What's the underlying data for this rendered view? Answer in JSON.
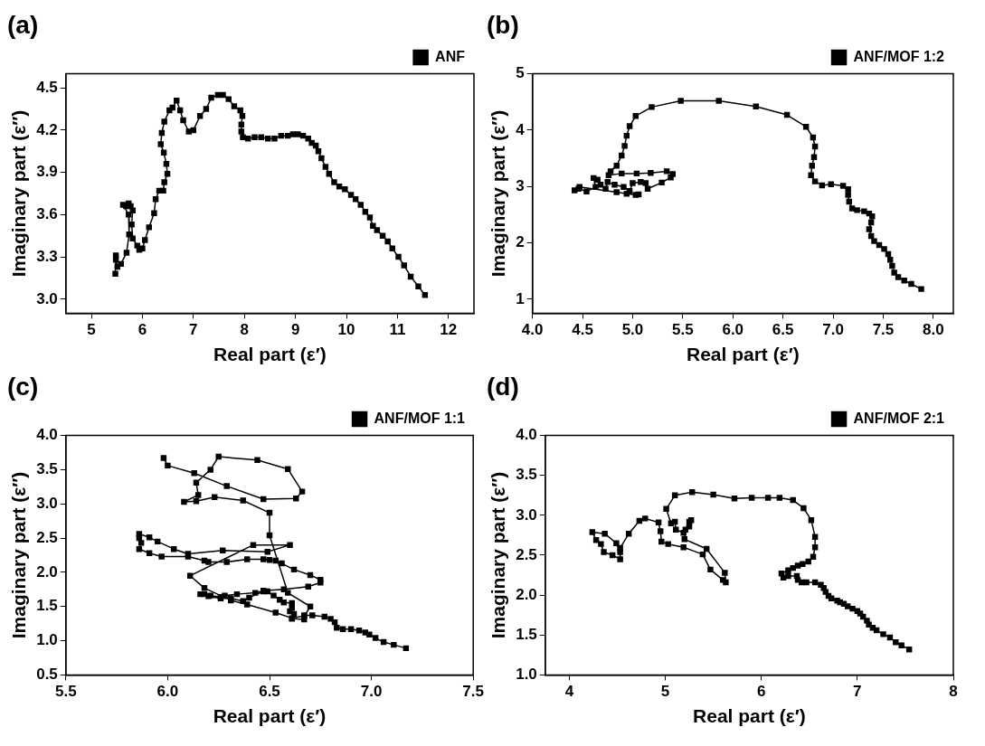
{
  "chart_data": [
    {
      "type": "line",
      "title": "(a)",
      "xlabel": "Real part (ε′)",
      "ylabel": "Imaginary part (ε″)",
      "xlim": [
        4.5,
        12.5
      ],
      "xticks": [
        5,
        6,
        7,
        8,
        9,
        10,
        11,
        12
      ],
      "ylim": [
        2.9,
        4.6
      ],
      "yticks": [
        {
          "value": 3,
          "label": "3.0"
        },
        3.3,
        3.6,
        3.9,
        4.2,
        4.5
      ],
      "marker": "square",
      "legend": "top right",
      "series": [
        {
          "name": "ANF",
          "color": "#000000",
          "x": [
            11.54,
            11.41,
            11.26,
            11.13,
            11.02,
            10.9,
            10.81,
            10.71,
            10.6,
            10.52,
            10.46,
            10.37,
            10.28,
            10.18,
            10.09,
            9.97,
            9.86,
            9.76,
            9.66,
            9.59,
            9.51,
            9.45,
            9.4,
            9.32,
            9.25,
            9.15,
            9.05,
            8.95,
            8.85,
            8.72,
            8.59,
            8.46,
            8.33,
            8.2,
            8.07,
            7.97,
            7.94,
            7.94,
            7.96,
            7.92,
            7.8,
            7.69,
            7.58,
            7.48,
            7.35,
            7.25,
            7.13,
            7.0,
            6.91,
            6.8,
            6.74,
            6.67,
            6.59,
            6.53,
            6.43,
            6.38,
            6.36,
            6.42,
            6.47,
            6.49,
            6.43,
            6.41,
            6.33,
            6.26,
            6.23,
            6.13,
            6.05,
            6.0,
            5.94,
            5.9,
            5.81,
            5.79,
            5.81,
            5.77,
            5.73,
            5.68,
            5.62,
            5.73,
            5.74,
            5.69,
            5.58,
            5.51,
            5.48,
            5.48,
            5.47
          ],
          "values": [
            3.03,
            3.09,
            3.16,
            3.24,
            3.3,
            3.36,
            3.41,
            3.45,
            3.49,
            3.52,
            3.58,
            3.62,
            3.67,
            3.71,
            3.74,
            3.78,
            3.8,
            3.83,
            3.89,
            3.94,
            4.0,
            4.05,
            4.09,
            4.11,
            4.14,
            4.16,
            4.17,
            4.17,
            4.16,
            4.16,
            4.14,
            4.14,
            4.15,
            4.15,
            4.14,
            4.15,
            4.19,
            4.24,
            4.3,
            4.34,
            4.37,
            4.42,
            4.45,
            4.45,
            4.43,
            4.35,
            4.3,
            4.2,
            4.19,
            4.27,
            4.34,
            4.41,
            4.36,
            4.34,
            4.26,
            4.18,
            4.1,
            4.04,
            3.96,
            3.89,
            3.83,
            3.77,
            3.77,
            3.71,
            3.61,
            3.51,
            3.42,
            3.36,
            3.35,
            3.38,
            3.43,
            3.53,
            3.63,
            3.66,
            3.68,
            3.66,
            3.67,
            3.6,
            3.46,
            3.33,
            3.25,
            3.23,
            3.28,
            3.31,
            3.18
          ]
        }
      ]
    },
    {
      "type": "line",
      "title": "(b)",
      "xlabel": "Real part (ε′)",
      "ylabel": "Imaginary part (ε″)",
      "xlim": [
        4.0,
        8.2
      ],
      "xticks": [
        {
          "value": 4,
          "label": "4.0"
        },
        4.5,
        {
          "value": 5,
          "label": "5.0"
        },
        5.5,
        {
          "value": 6,
          "label": "6.0"
        },
        6.5,
        {
          "value": 7,
          "label": "7.0"
        },
        7.5,
        {
          "value": 8,
          "label": "8.0"
        }
      ],
      "ylim": [
        0.75,
        5
      ],
      "yticks": [
        1,
        2,
        3,
        4,
        5
      ],
      "marker": "square",
      "legend": "top right",
      "series": [
        {
          "name": "ANF/MOF 1:2",
          "color": "#000000",
          "x": [
            7.88,
            7.78,
            7.71,
            7.65,
            7.61,
            7.59,
            7.57,
            7.55,
            7.51,
            7.46,
            7.41,
            7.38,
            7.36,
            7.38,
            7.39,
            7.36,
            7.31,
            7.24,
            7.19,
            7.16,
            7.15,
            7.15,
            7.1,
            6.98,
            6.89,
            6.82,
            6.78,
            6.79,
            6.81,
            6.82,
            6.8,
            6.73,
            6.54,
            6.23,
            5.86,
            5.48,
            5.19,
            5.03,
            4.97,
            4.94,
            4.92,
            4.89,
            4.84,
            4.78,
            4.76,
            4.89,
            5.04,
            5.18,
            5.34,
            5.4,
            5.38,
            5.29,
            5.15,
            5.13,
            5.08,
            5.0,
            4.97,
            4.91,
            4.82,
            4.75,
            4.73,
            4.68,
            4.65,
            4.61,
            4.63,
            4.54,
            4.46,
            4.42,
            4.47,
            4.84,
            4.94,
            5.03,
            5.06
          ],
          "values": [
            1.18,
            1.27,
            1.33,
            1.39,
            1.47,
            1.59,
            1.7,
            1.8,
            1.89,
            1.96,
            2.03,
            2.12,
            2.24,
            2.36,
            2.47,
            2.52,
            2.56,
            2.58,
            2.61,
            2.73,
            2.85,
            2.95,
            3.01,
            3.04,
            3.02,
            3.09,
            3.2,
            3.37,
            3.52,
            3.71,
            3.87,
            4.06,
            4.27,
            4.42,
            4.52,
            4.52,
            4.41,
            4.25,
            4.07,
            3.9,
            3.72,
            3.55,
            3.37,
            3.27,
            3.2,
            3.23,
            3.23,
            3.24,
            3.27,
            3.22,
            3.16,
            3.07,
            2.96,
            3.06,
            3.08,
            3.06,
            2.92,
            2.99,
            3.03,
            3.08,
            2.96,
            3.03,
            3.12,
            3.15,
            2.99,
            2.91,
            2.96,
            2.93,
            2.99,
            2.9,
            2.87,
            2.85,
            2.86
          ]
        }
      ]
    },
    {
      "type": "line",
      "title": "(c)",
      "xlabel": "Real part (ε′)",
      "ylabel": "Imaginary part (ε″)",
      "xlim": [
        5.5,
        7.5
      ],
      "xticks": [
        5.5,
        {
          "value": 6,
          "label": "6.0"
        },
        6.5,
        {
          "value": 7,
          "label": "7.0"
        },
        7.5
      ],
      "ylim": [
        0.5,
        4.0
      ],
      "yticks": [
        0.5,
        {
          "value": 1,
          "label": "1.0"
        },
        1.5,
        {
          "value": 2,
          "label": "2.0"
        },
        2.5,
        {
          "value": 3,
          "label": "3.0"
        },
        3.5,
        {
          "value": 4,
          "label": "4.0"
        }
      ],
      "marker": "square",
      "legend": "top right",
      "series": [
        {
          "name": "ANF/MOF 1:1",
          "color": "#000000",
          "x": [
            5.98,
            6.0,
            6.13,
            6.29,
            6.47,
            6.63,
            6.66,
            6.59,
            6.44,
            6.25,
            6.21,
            6.14,
            6.15,
            6.08,
            6.14,
            6.23,
            6.37,
            6.5,
            6.5,
            6.59,
            6.7,
            6.67,
            6.61,
            6.53,
            6.39,
            6.31,
            6.18,
            6.11,
            6.42,
            6.6,
            6.49,
            6.27,
            6.1,
            6.03,
            5.95,
            5.91,
            5.86,
            5.86,
            5.87,
            5.86,
            5.91,
            5.97,
            6.1,
            6.18,
            6.2,
            6.29,
            6.39,
            6.47,
            6.5,
            6.53,
            6.56,
            6.62,
            6.7,
            6.75,
            6.75,
            6.69,
            6.57,
            6.47,
            6.43,
            6.34,
            6.28,
            6.26,
            6.21,
            6.18,
            6.16,
            6.2,
            6.26,
            6.31,
            6.37,
            6.4,
            6.47,
            6.49,
            6.52,
            6.55,
            6.57,
            6.61,
            6.61,
            6.6,
            6.62,
            6.61,
            6.67,
            6.67,
            6.71,
            6.77,
            6.8,
            6.82,
            6.83,
            6.86,
            6.9,
            6.94,
            6.97,
            6.99,
            7.02,
            7.06,
            7.11,
            7.17
          ],
          "values": [
            3.67,
            3.56,
            3.45,
            3.26,
            3.07,
            3.08,
            3.18,
            3.51,
            3.64,
            3.69,
            3.5,
            3.31,
            3.13,
            3.03,
            3.04,
            3.1,
            3.05,
            2.87,
            2.54,
            1.7,
            1.5,
            1.36,
            1.33,
            1.41,
            1.53,
            1.59,
            1.77,
            1.95,
            2.4,
            2.4,
            2.3,
            2.32,
            2.27,
            2.34,
            2.45,
            2.51,
            2.56,
            2.5,
            2.43,
            2.34,
            2.28,
            2.23,
            2.23,
            2.17,
            2.15,
            2.15,
            2.19,
            2.19,
            2.18,
            2.17,
            2.13,
            2.04,
            1.96,
            1.89,
            1.85,
            1.79,
            1.75,
            1.73,
            1.7,
            1.68,
            1.66,
            1.64,
            1.66,
            1.68,
            1.68,
            1.65,
            1.62,
            1.62,
            1.58,
            1.63,
            1.72,
            1.72,
            1.66,
            1.6,
            1.56,
            1.55,
            1.48,
            1.43,
            1.39,
            1.32,
            1.31,
            1.37,
            1.37,
            1.35,
            1.32,
            1.27,
            1.19,
            1.17,
            1.17,
            1.15,
            1.12,
            1.09,
            1.04,
            0.98,
            0.94,
            0.89
          ]
        }
      ]
    },
    {
      "type": "line",
      "title": "(d)",
      "xlabel": "Real part (ε′)",
      "ylabel": "Imaginary part (ε″)",
      "xlim": [
        3.75,
        8
      ],
      "xticks": [
        4,
        5,
        6,
        7,
        8
      ],
      "ylim": [
        1.0,
        4.0
      ],
      "yticks": [
        {
          "value": 1,
          "label": "1.0"
        },
        1.5,
        {
          "value": 2,
          "label": "2.0"
        },
        2.5,
        {
          "value": 3,
          "label": "3.0"
        },
        3.5,
        {
          "value": 4,
          "label": "4.0"
        }
      ],
      "marker": "square",
      "legend": "top right",
      "series": [
        {
          "name": "ANF/MOF 2:1",
          "color": "#000000",
          "x": [
            7.54,
            7.46,
            7.4,
            7.34,
            7.27,
            7.2,
            7.16,
            7.12,
            7.1,
            7.06,
            7.03,
            7.0,
            6.95,
            6.9,
            6.86,
            6.82,
            6.79,
            6.73,
            6.7,
            6.67,
            6.65,
            6.62,
            6.56,
            6.47,
            6.42,
            6.38,
            6.37,
            6.28,
            6.23,
            6.21,
            6.28,
            6.33,
            6.38,
            6.43,
            6.49,
            6.54,
            6.56,
            6.56,
            6.52,
            6.44,
            6.33,
            6.19,
            6.07,
            5.9,
            5.72,
            5.5,
            5.28,
            5.1,
            5.01,
            5.06,
            5.1,
            5.11,
            5.19,
            5.25,
            5.27,
            5.25,
            5.21,
            5.2,
            5.43,
            5.62,
            5.63,
            5.6,
            5.47,
            5.39,
            5.19,
            5.03,
            4.96,
            4.95,
            4.93,
            4.79,
            4.73,
            4.62,
            4.53,
            4.53,
            4.45,
            4.36,
            4.33,
            4.28,
            4.24,
            4.37,
            4.49,
            4.53
          ],
          "values": [
            1.32,
            1.37,
            1.41,
            1.47,
            1.51,
            1.56,
            1.59,
            1.63,
            1.68,
            1.73,
            1.77,
            1.8,
            1.83,
            1.86,
            1.89,
            1.91,
            1.93,
            1.96,
            1.99,
            2.04,
            2.09,
            2.13,
            2.16,
            2.16,
            2.16,
            2.19,
            2.24,
            2.24,
            2.22,
            2.27,
            2.31,
            2.34,
            2.37,
            2.39,
            2.42,
            2.48,
            2.6,
            2.73,
            2.94,
            3.09,
            3.19,
            3.22,
            3.22,
            3.22,
            3.21,
            3.26,
            3.29,
            3.25,
            3.08,
            2.9,
            2.92,
            2.82,
            2.78,
            2.92,
            2.94,
            2.86,
            2.82,
            2.7,
            2.58,
            2.28,
            2.16,
            2.19,
            2.32,
            2.51,
            2.6,
            2.64,
            2.67,
            2.8,
            2.91,
            2.96,
            2.93,
            2.77,
            2.59,
            2.45,
            2.5,
            2.54,
            2.64,
            2.69,
            2.79,
            2.77,
            2.65,
            2.54
          ]
        }
      ]
    }
  ]
}
